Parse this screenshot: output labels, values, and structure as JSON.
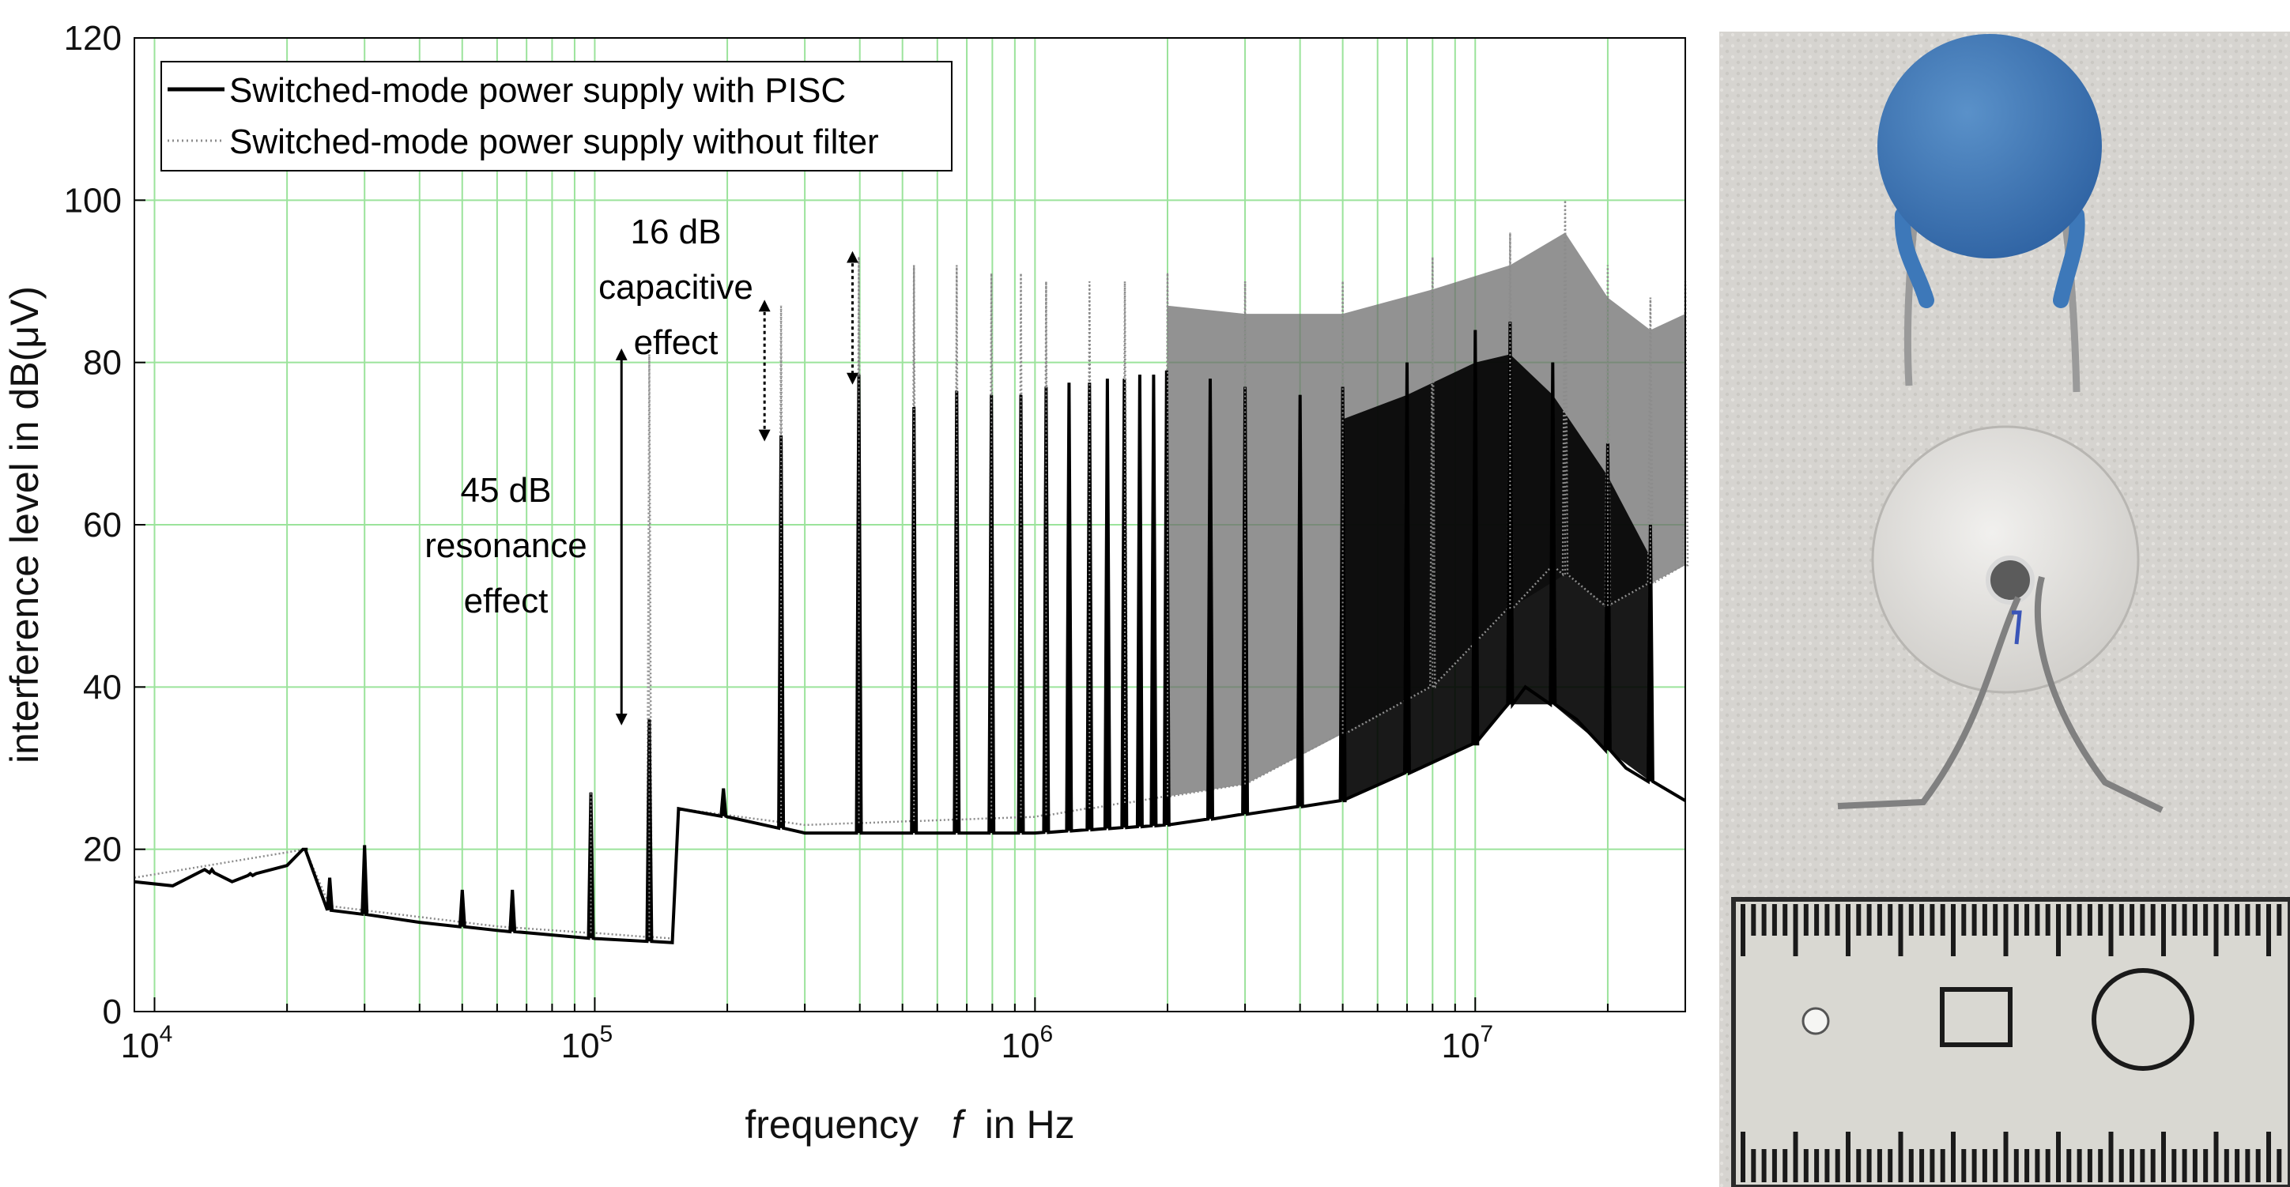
{
  "chart_data": {
    "type": "line",
    "xscale": "log",
    "xlim": [
      9000,
      30000000
    ],
    "ylim": [
      0,
      120
    ],
    "yticks": [
      0,
      20,
      40,
      60,
      80,
      100,
      120
    ],
    "xticks": [
      {
        "value": 10000,
        "base": "10",
        "exp": "4"
      },
      {
        "value": 100000,
        "base": "10",
        "exp": "5"
      },
      {
        "value": 1000000,
        "base": "10",
        "exp": "6"
      },
      {
        "value": 10000000,
        "base": "10",
        "exp": "7"
      }
    ],
    "xlabel_prefix": "frequency",
    "xlabel_var": "f",
    "xlabel_suffix": "in Hz",
    "ylabel": "interference level in dB(μV)",
    "grid": true,
    "legend_position": "top-left",
    "colors": {
      "with_pisc": "#000000",
      "without_filter": "#8c8c8c",
      "grid": "#9be39b",
      "grey_band": "#6e6e6e"
    },
    "series": [
      {
        "name": "Switched-mode power supply with PISC",
        "style": "solid",
        "floor": [
          [
            9000,
            16
          ],
          [
            11000,
            15.5
          ],
          [
            13000,
            17.5
          ],
          [
            15000,
            16
          ],
          [
            17000,
            17
          ],
          [
            20000,
            18
          ],
          [
            22000,
            20
          ],
          [
            25000,
            12.5
          ],
          [
            30000,
            12
          ],
          [
            40000,
            11
          ],
          [
            60000,
            10
          ],
          [
            100000,
            9
          ],
          [
            150000,
            8.5
          ],
          [
            155000,
            25
          ],
          [
            200000,
            24
          ],
          [
            300000,
            22
          ],
          [
            500000,
            22
          ],
          [
            1000000,
            22
          ],
          [
            2000000,
            23
          ],
          [
            5000000,
            26
          ],
          [
            10000000,
            33
          ],
          [
            13000000,
            40
          ],
          [
            17000000,
            36
          ],
          [
            22000000,
            30
          ],
          [
            30000000,
            26
          ]
        ],
        "peaks": [
          [
            13500,
            17.5
          ],
          [
            16500,
            17
          ],
          [
            22000,
            20
          ],
          [
            25000,
            16.5
          ],
          [
            30000,
            20.5
          ],
          [
            50000,
            15
          ],
          [
            65000,
            15
          ],
          [
            98000,
            27
          ],
          [
            133000,
            36
          ],
          [
            196000,
            27.5
          ],
          [
            265000,
            71
          ],
          [
            398000,
            78.5
          ],
          [
            531000,
            74.5
          ],
          [
            664000,
            76.5
          ],
          [
            796000,
            76
          ],
          [
            929000,
            76
          ],
          [
            1060000,
            77
          ],
          [
            1195000,
            77.5
          ],
          [
            1330000,
            77.5
          ],
          [
            1460000,
            78
          ],
          [
            1595000,
            78
          ],
          [
            1730000,
            78.5
          ],
          [
            1860000,
            78.5
          ],
          [
            1990000,
            79
          ],
          [
            2500000,
            78
          ],
          [
            3000000,
            77
          ],
          [
            4000000,
            76
          ],
          [
            5000000,
            77
          ],
          [
            7000000,
            80
          ],
          [
            10000000,
            84
          ],
          [
            12000000,
            85
          ],
          [
            15000000,
            80
          ],
          [
            20000000,
            70
          ],
          [
            25000000,
            60
          ]
        ]
      },
      {
        "name": "Switched-mode power supply without filter",
        "style": "dotted",
        "floor": [
          [
            9000,
            16.5
          ],
          [
            22000,
            20
          ],
          [
            25000,
            13
          ],
          [
            60000,
            10.5
          ],
          [
            150000,
            9
          ],
          [
            155000,
            25
          ],
          [
            300000,
            23
          ],
          [
            1000000,
            24
          ],
          [
            3000000,
            28
          ],
          [
            8000000,
            40
          ],
          [
            15000000,
            55
          ],
          [
            20000000,
            50
          ],
          [
            30000000,
            55
          ]
        ],
        "peaks": [
          [
            98000,
            27
          ],
          [
            133000,
            81
          ],
          [
            265000,
            87
          ],
          [
            398000,
            93
          ],
          [
            531000,
            92
          ],
          [
            664000,
            92
          ],
          [
            796000,
            91
          ],
          [
            929000,
            91
          ],
          [
            1060000,
            90
          ],
          [
            1330000,
            90
          ],
          [
            1600000,
            90
          ],
          [
            2000000,
            91
          ],
          [
            3000000,
            90
          ],
          [
            5000000,
            90
          ],
          [
            8000000,
            93
          ],
          [
            12000000,
            96
          ],
          [
            16000000,
            100
          ],
          [
            20000000,
            92
          ],
          [
            25000000,
            88
          ],
          [
            30000000,
            90
          ]
        ]
      }
    ],
    "annotations": [
      {
        "name": "resonance",
        "lines": [
          "45 dB",
          "resonance",
          "effect"
        ],
        "x": 115000,
        "y_from": 36,
        "y_to": 81
      },
      {
        "name": "capacitive",
        "lines": [
          "16 dB",
          "capacitive",
          "effect"
        ],
        "arrows": [
          {
            "x": 243000,
            "y_from": 71,
            "y_to": 87
          },
          {
            "x": 385000,
            "y_from": 78,
            "y_to": 93
          }
        ]
      }
    ]
  }
}
